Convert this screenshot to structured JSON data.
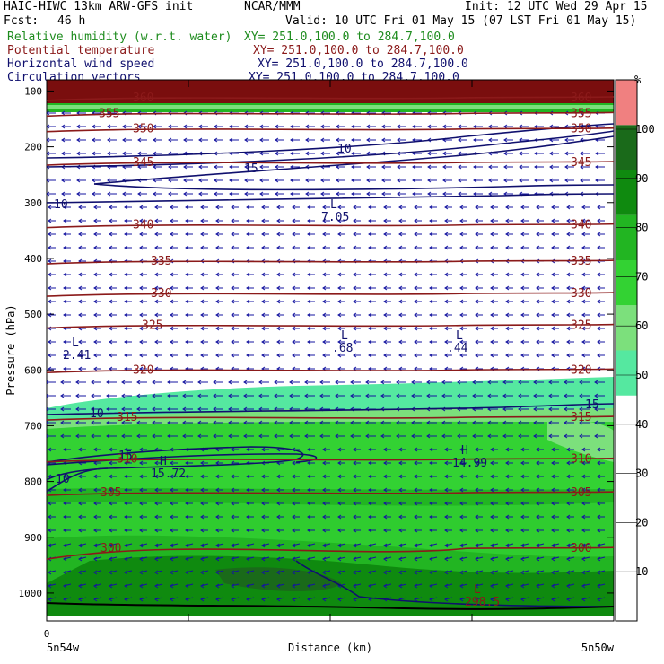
{
  "header": {
    "model": "HAIC-HIWC 13km ARW-GFS init",
    "org": "NCAR/MMM",
    "init": "Init: 12 UTC Wed 29 Apr 15",
    "fcst_label": "Fcst:",
    "fcst_value": "46 h",
    "valid": "Valid: 10 UTC Fri 01 May 15 (07 LST Fri 01 May 15)",
    "fields": [
      {
        "name": "Relative humidity (w.r.t. water)",
        "xy": "XY= 251.0,100.0 to 284.7,100.0",
        "color": "#1e8c1e"
      },
      {
        "name": "Potential temperature",
        "xy": "XY= 251.0,100.0 to 284.7,100.0",
        "color": "#8b1a1a"
      },
      {
        "name": "Horizontal wind speed",
        "xy": "XY= 251.0,100.0 to 284.7,100.0",
        "color": "#10106e"
      },
      {
        "name": "Circulation vectors",
        "xy": "XY= 251.0,100.0 to 284.7,100.0",
        "color": "#10106e"
      }
    ]
  },
  "chart_data": {
    "type": "heatmap",
    "ylabel": "Pressure (hPa)",
    "xlabel": "Distance (km)",
    "x_tick_label": "0",
    "left_location": "5n54w",
    "right_location": "5n50w",
    "y_ticks": [
      "100",
      "200",
      "300",
      "400",
      "500",
      "600",
      "700",
      "800",
      "900",
      "1000"
    ],
    "pressure_range": [
      1050,
      80
    ],
    "colorbar": {
      "unit": "%",
      "ticks": [
        "10",
        "20",
        "30",
        "40",
        "50",
        "60",
        "70",
        "80",
        "90",
        "100"
      ],
      "colors": [
        "#ffffff",
        "#ffffff",
        "#ffffff",
        "#ffffff",
        "#ffffff",
        "#55e8a0",
        "#7ce07c",
        "#33d233",
        "#22b522",
        "#0f8a0f",
        "#1a6a1a",
        "#f08080"
      ]
    },
    "theta_contours": [
      {
        "label": "360",
        "p": 112
      },
      {
        "label": "355",
        "p": 140
      },
      {
        "label": "350",
        "p": 168
      },
      {
        "label": "345",
        "p": 228
      },
      {
        "label": "340",
        "p": 340
      },
      {
        "label": "335",
        "p": 405
      },
      {
        "label": "330",
        "p": 463
      },
      {
        "label": "325",
        "p": 520
      },
      {
        "label": "320",
        "p": 600
      },
      {
        "label": "315",
        "p": 685
      },
      {
        "label": "310",
        "p": 760
      },
      {
        "label": "305",
        "p": 820
      },
      {
        "label": "300",
        "p": 920
      }
    ],
    "wind_labels": [
      "10",
      "15",
      "10",
      "10",
      "15",
      "15",
      "10"
    ],
    "extrema": [
      {
        "type": "L",
        "value": "7.05"
      },
      {
        "type": "L",
        "value": "2.41"
      },
      {
        "type": "L",
        "value": ".68"
      },
      {
        "type": "L",
        "value": ".44"
      },
      {
        "type": "H",
        "value": "15.72"
      },
      {
        "type": "H",
        "value": "14.99"
      },
      {
        "type": "L",
        "value": "298.5"
      }
    ]
  }
}
